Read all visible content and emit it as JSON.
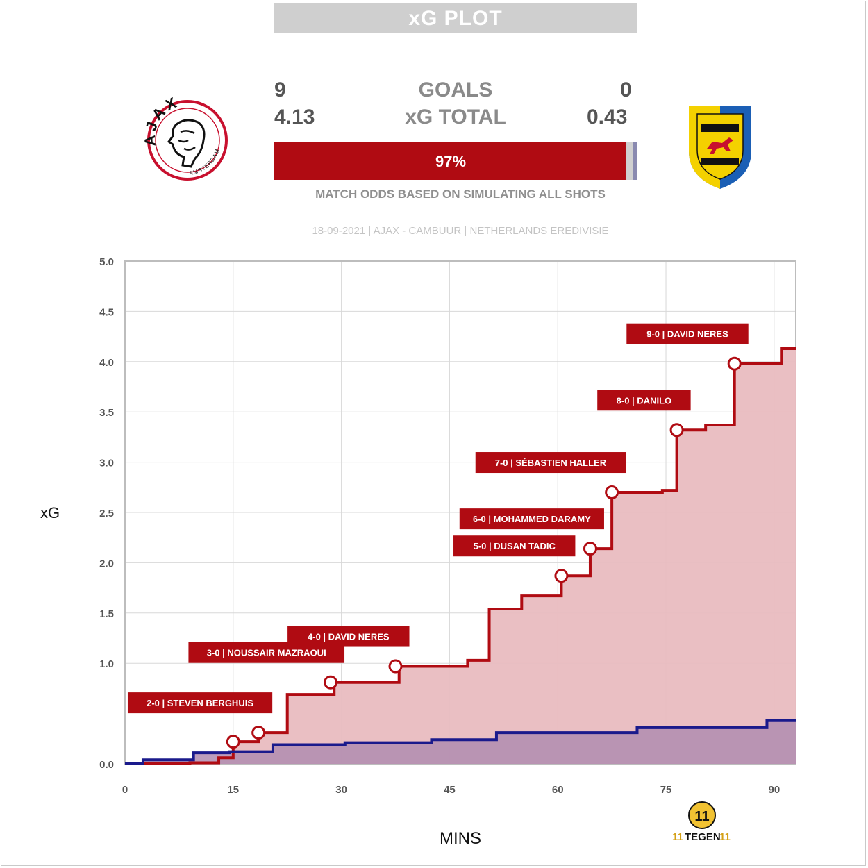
{
  "header": {
    "title": "xG PLOT",
    "goals_label": "GOALS",
    "xg_label": "xG TOTAL",
    "home_goals": "9",
    "away_goals": "0",
    "home_xg": "4.13",
    "away_xg": "0.43",
    "odds": {
      "home": 0.97,
      "draw": 0.02,
      "away": 0.01,
      "label": "97%"
    },
    "odds_caption": "MATCH ODDS BASED ON SIMULATING ALL SHOTS",
    "match_info": "18-09-2021 | AJAX - CAMBUUR | NETHERLANDS EREDIVISIE",
    "home_logo": {
      "ring_text": "AJAX",
      "sub_text": "AMSTERDAM"
    },
    "brand_logo": {
      "mark": "11",
      "text_left": "11",
      "text_mid": "TEGEN",
      "text_right": "11"
    }
  },
  "colors": {
    "home": "#b00b12",
    "home_fill": "#e9bcc0",
    "away": "#1a1a8c",
    "away_fill": "#b08cb0",
    "grid": "#d8d8d8"
  },
  "chart_data": {
    "type": "area",
    "xlabel": "MINS",
    "ylabel": "xG",
    "xlim": [
      0,
      93
    ],
    "ylim": [
      0,
      5.0
    ],
    "xticks": [
      0,
      15,
      30,
      45,
      60,
      75,
      90
    ],
    "yticks": [
      "0.0",
      "1.0",
      "1.5",
      "2.0",
      "2.5",
      "3.0",
      "3.5",
      "4.0",
      "4.5",
      "5.0"
    ],
    "ytick_values": [
      0,
      1.0,
      1.5,
      2.0,
      2.5,
      3.0,
      3.5,
      4.0,
      4.5,
      5.0
    ],
    "series": [
      {
        "team": "home",
        "steps": [
          [
            0,
            0
          ],
          [
            9,
            0.01
          ],
          [
            13,
            0.06
          ],
          [
            15,
            0.22
          ],
          [
            18.5,
            0.31
          ],
          [
            22.5,
            0.69
          ],
          [
            29,
            0.81
          ],
          [
            38,
            0.97
          ],
          [
            47.5,
            1.03
          ],
          [
            50.5,
            1.54
          ],
          [
            55,
            1.67
          ],
          [
            60.5,
            1.87
          ],
          [
            64.5,
            2.14
          ],
          [
            67.5,
            2.7
          ],
          [
            74.5,
            2.72
          ],
          [
            76.5,
            3.32
          ],
          [
            80.5,
            3.37
          ],
          [
            84.5,
            3.98
          ],
          [
            91,
            4.13
          ],
          [
            93,
            4.13
          ]
        ]
      },
      {
        "team": "away",
        "steps": [
          [
            0,
            0
          ],
          [
            2.5,
            0.04
          ],
          [
            9.5,
            0.11
          ],
          [
            14.5,
            0.12
          ],
          [
            20.5,
            0.19
          ],
          [
            30.5,
            0.21
          ],
          [
            42.5,
            0.24
          ],
          [
            51.5,
            0.31
          ],
          [
            71,
            0.36
          ],
          [
            89,
            0.43
          ],
          [
            93,
            0.43
          ]
        ]
      }
    ],
    "goals": [
      {
        "x": 15,
        "y": 0.22,
        "label": ""
      },
      {
        "x": 18.5,
        "y": 0.31,
        "label": "2-0 | STEVEN BERGHUIS"
      },
      {
        "x": 28.5,
        "y": 0.81,
        "label": "3-0 | NOUSSAIR MAZRAOUI"
      },
      {
        "x": 37.5,
        "y": 0.97,
        "label": "4-0 | DAVID NERES"
      },
      {
        "x": 60.5,
        "y": 1.87,
        "label": "5-0 | DUSAN TADIC"
      },
      {
        "x": 64.5,
        "y": 2.14,
        "label": "6-0 | MOHAMMED DARAMY"
      },
      {
        "x": 67.5,
        "y": 2.7,
        "label": "7-0 | SÉBASTIEN HALLER"
      },
      {
        "x": 76.5,
        "y": 3.32,
        "label": "8-0 | DANILO"
      },
      {
        "x": 84.5,
        "y": 3.98,
        "label": "9-0 | DAVID NERES"
      }
    ],
    "grid": true
  }
}
